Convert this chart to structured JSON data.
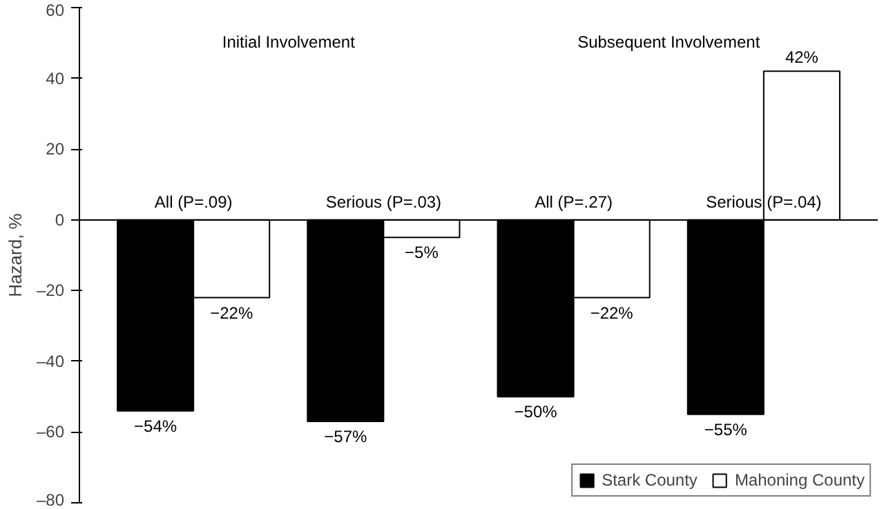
{
  "chart_data": {
    "type": "bar",
    "ylabel": "Hazard, %",
    "categories": [
      "All (P=.09)",
      "Serious (P=.03)",
      "All (P=.27)",
      "Serious (P=.04)"
    ],
    "series": [
      {
        "name": "Stark County",
        "color": "#000000",
        "values": [
          -54,
          -57,
          -50,
          -55
        ],
        "value_labels": [
          "−54%",
          "−57%",
          "−50%",
          "−55%"
        ]
      },
      {
        "name": "Mahoning County",
        "color": "#ffffff",
        "values": [
          -22,
          -5,
          -22,
          42
        ],
        "value_labels": [
          "−22%",
          "−5%",
          "−22%",
          "42%"
        ]
      }
    ],
    "annotations": [
      "Initial Involvement",
      "Subsequent Involvement"
    ],
    "ylim": [
      -80,
      60
    ],
    "yticks": [
      {
        "value": -80,
        "label": "–80"
      },
      {
        "value": -60,
        "label": "–60"
      },
      {
        "value": -40,
        "label": "–40"
      },
      {
        "value": -20,
        "label": "–20"
      },
      0,
      20,
      40,
      60
    ],
    "grid": false,
    "legend": "bottom right",
    "tick_labels": "y"
  }
}
